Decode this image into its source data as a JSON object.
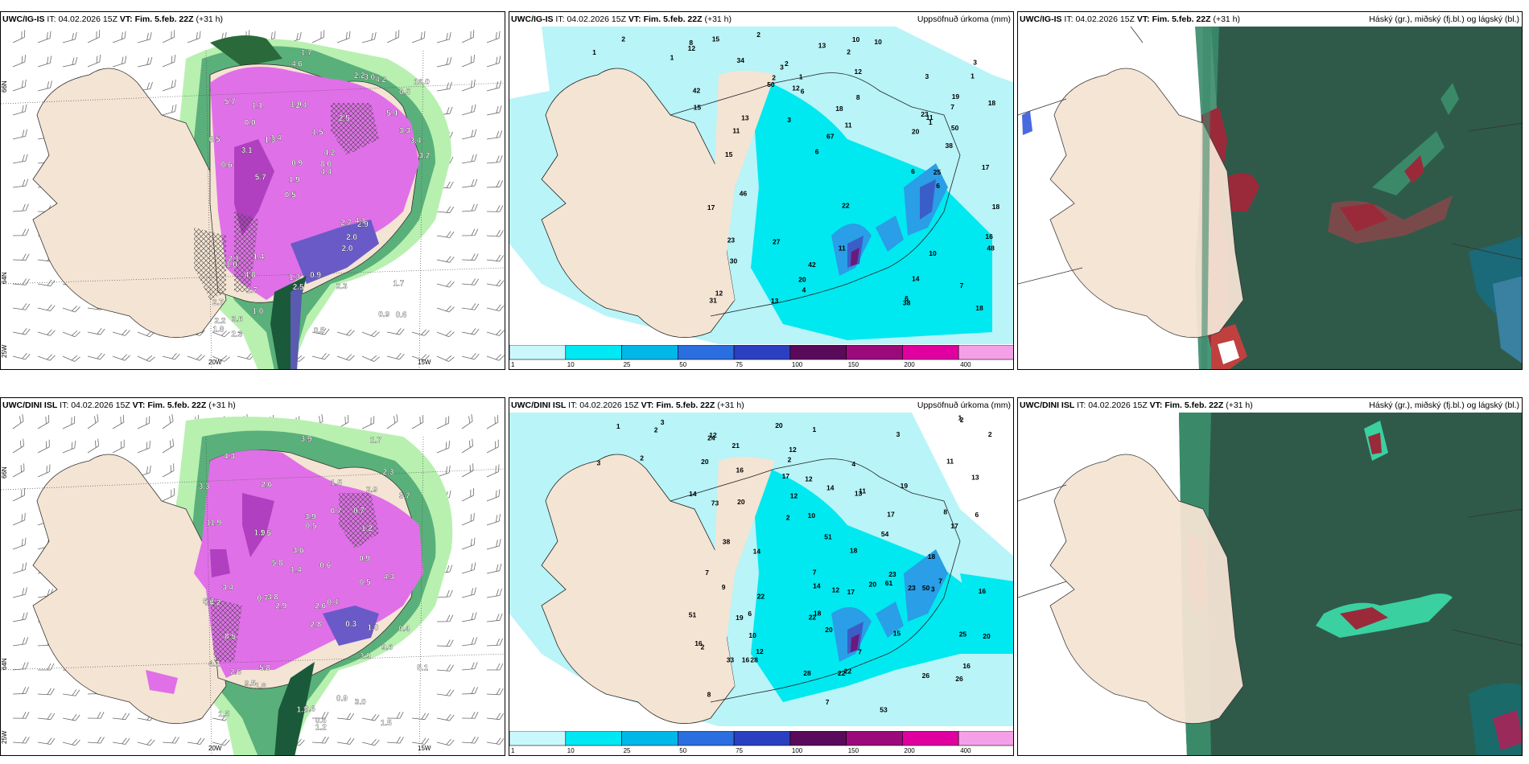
{
  "panels": [
    {
      "id": "top-left",
      "model": "UWC/IG-IS",
      "it_label": "IT:",
      "it_value": "04.02.2026 15Z",
      "vt_label": "VT:",
      "vt_value": "Fim. 5.feb. 22Z",
      "lead": "(+31 h)",
      "right_title": "",
      "lon_labels": [
        "20W",
        "15W"
      ],
      "lat_labels": [
        "66N",
        "64N",
        "25W"
      ],
      "values": [
        "0.6",
        "0.6",
        "0.5",
        "0.5",
        "2.5",
        "3.6",
        "1.9",
        "1.5",
        "2.1",
        "1.4",
        "2.7",
        "1.7",
        "2.4",
        "4.2",
        "2.9",
        "5.7",
        "4.6",
        "3.2",
        "2.7",
        "3.3",
        "1.9",
        "1.3",
        "0.9",
        "1.1",
        "2.2",
        "1.4",
        "0.9",
        "1.7",
        "4.1",
        "0.5",
        "1.3",
        "3.1",
        "2.0",
        "1.0",
        "3.4",
        "8.0",
        "2.2",
        "2.5",
        "4.4",
        "11.0",
        "5.4",
        "16.0",
        "2.0",
        "2.3",
        "4.8",
        "2.3",
        "1.8",
        "0.9",
        "4.2",
        "1.7",
        "5.7",
        "6.5",
        "0.0",
        "3.0"
      ]
    },
    {
      "id": "top-center",
      "model": "UWC/IG-IS",
      "it_label": "IT:",
      "it_value": "04.02.2026 15Z",
      "vt_label": "VT:",
      "vt_value": "Fim. 5.feb. 22Z",
      "lead": "(+31 h)",
      "right_title": "Uppsöfnuð úrkoma (mm)",
      "values": [
        "1",
        "2",
        "1",
        "2",
        "1",
        "3",
        "2",
        "2",
        "3",
        "3",
        "2",
        "1",
        "6",
        "17",
        "6",
        "7",
        "8",
        "7",
        "12",
        "18",
        "11",
        "11",
        "6",
        "42",
        "10",
        "15",
        "14",
        "17",
        "19",
        "18",
        "38",
        "6",
        "30",
        "27",
        "31",
        "11",
        "38",
        "34",
        "42",
        "67",
        "15",
        "13",
        "50",
        "48",
        "46",
        "50",
        "4",
        "6",
        "18",
        "10",
        "23",
        "20",
        "25",
        "23",
        "20",
        "22",
        "18",
        "13",
        "16",
        "12",
        "11",
        "12",
        "13",
        "15",
        "8",
        "12",
        "10",
        "3",
        "1"
      ],
      "colorbar_values": [
        "1",
        "10",
        "25",
        "50",
        "75",
        "100",
        "150",
        "200",
        "400"
      ]
    },
    {
      "id": "top-right",
      "model": "UWC/IG-IS",
      "it_label": "IT:",
      "it_value": "04.02.2026 15Z",
      "vt_label": "VT:",
      "vt_value": "Fim. 5.feb. 22Z",
      "lead": "(+31 h)",
      "right_title": "Háský (gr.), miðský (fj.bl.) og lágský (bl.)"
    },
    {
      "id": "bottom-left",
      "model": "UWC/DINI ISL",
      "it_label": "IT:",
      "it_value": "04.02.2026 15Z",
      "vt_label": "VT:",
      "vt_value": "Fim. 5.feb. 22Z",
      "lead": "(+31 h)",
      "right_title": "",
      "lon_labels": [
        "20W",
        "15W"
      ],
      "lat_labels": [
        "66N",
        "64N",
        "25W"
      ],
      "values": [
        "0.6",
        "3.0",
        "2.7",
        "1.5",
        "2.6",
        "3.9",
        "0.4",
        "0.6",
        "1.9",
        "3.9",
        "1.0",
        "0.5",
        "1.5",
        "3.8",
        "3.9",
        "2.9",
        "1.2",
        "0.4",
        "1.5",
        "1.2",
        "3.4",
        "4.3",
        "1.8",
        "1.4",
        "0.9",
        "1.3",
        "9.6",
        "2.3",
        "0.9",
        "0.3",
        "0.6",
        "4.3",
        "0.7",
        "3.3",
        "5.8",
        "5.1",
        "2.9",
        "3.6",
        "8.5",
        "11.9",
        "3.7",
        "10.2",
        "9.5",
        "5.2",
        "4.2",
        "1.5",
        "2.6",
        "2.8",
        "2.6",
        "0.7",
        "0.5",
        "5.8",
        "0.7"
      ]
    },
    {
      "id": "bottom-center",
      "model": "UWC/DINI ISL",
      "it_label": "IT:",
      "it_value": "04.02.2026 15Z",
      "vt_label": "VT:",
      "vt_value": "Fim. 5.feb. 22Z",
      "lead": "(+31 h)",
      "right_title": "Uppsöfnuð úrkoma (mm)",
      "values": [
        "2",
        "1",
        "1",
        "2",
        "2",
        "3",
        "2",
        "3",
        "3",
        "4",
        "2",
        "1",
        "7",
        "6",
        "8",
        "7",
        "6",
        "7",
        "7",
        "7",
        "16",
        "16",
        "8",
        "12",
        "12",
        "9",
        "12",
        "20",
        "13",
        "12",
        "14",
        "11",
        "16",
        "26",
        "10",
        "17",
        "51",
        "2",
        "16",
        "18",
        "13",
        "22",
        "38",
        "28",
        "53",
        "50",
        "54",
        "61",
        "73",
        "20",
        "26",
        "28",
        "33",
        "17",
        "51",
        "17",
        "17",
        "20",
        "19",
        "16",
        "11",
        "20",
        "20",
        "19",
        "14",
        "25",
        "18",
        "21",
        "22",
        "23",
        "23",
        "20",
        "22",
        "24",
        "12",
        "14",
        "22",
        "18",
        "15",
        "10",
        "12",
        "14",
        "2",
        "3"
      ],
      "colorbar_values": [
        "1",
        "10",
        "25",
        "50",
        "75",
        "100",
        "150",
        "200",
        "400"
      ]
    },
    {
      "id": "bottom-right",
      "model": "UWC/DINI ISL",
      "it_label": "IT:",
      "it_value": "04.02.2026 15Z",
      "vt_label": "VT:",
      "vt_value": "Fim. 5.feb. 22Z",
      "lead": "(+31 h)",
      "right_title": "Háský (gr.), miðský (fj.bl.) og lágský (bl.)"
    }
  ],
  "colors": {
    "land": "#f4e4d3",
    "ocean_white": "#ffffff",
    "precip_cyan_light": "#b8f4f8",
    "precip_cyan": "#00e8f0",
    "precip_blue": "#2a9ee6",
    "precip_deep": "#3a5ec8",
    "precip_purple": "#6a1a7a",
    "snow_magenta": "#e070e8",
    "snow_green": "#2a6a3a",
    "light_green": "#b8f0b0",
    "cloud_dark": "#2f5a4a",
    "cloud_green": "#3a8a6a",
    "cloud_red": "#9a2a3a"
  },
  "colorbar_colors": [
    "#c8f8fc",
    "#00e8f4",
    "#00b8e8",
    "#2a6ee0",
    "#2a40c0",
    "#5a0a5a",
    "#9a0a7a",
    "#e000a0",
    "#f4a0e8"
  ]
}
